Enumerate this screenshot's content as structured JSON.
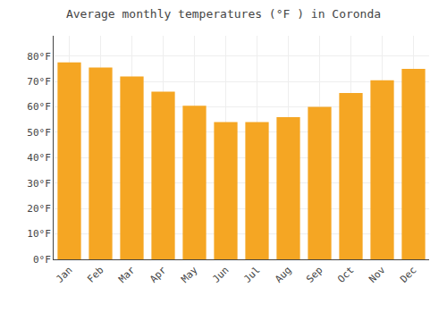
{
  "chart_data": {
    "type": "bar",
    "title": "Average monthly temperatures (°F ) in Coronda",
    "categories": [
      "Jan",
      "Feb",
      "Mar",
      "Apr",
      "May",
      "Jun",
      "Jul",
      "Aug",
      "Sep",
      "Oct",
      "Nov",
      "Dec"
    ],
    "values": [
      77.5,
      75.5,
      72,
      66,
      60.5,
      54,
      54,
      56,
      60,
      65.5,
      70.5,
      75
    ],
    "color": "#F5A623",
    "ylim": [
      0,
      88
    ],
    "yticks": [
      {
        "value": 0,
        "label": "0°F"
      },
      {
        "value": 10,
        "label": "10°F"
      },
      {
        "value": 20,
        "label": "20°F"
      },
      {
        "value": 30,
        "label": "30°F"
      },
      {
        "value": 40,
        "label": "40°F"
      },
      {
        "value": 50,
        "label": "50°F"
      },
      {
        "value": 60,
        "label": "60°F"
      },
      {
        "value": 70,
        "label": "70°F"
      },
      {
        "value": 80,
        "label": "80°F"
      }
    ],
    "grid": true
  }
}
